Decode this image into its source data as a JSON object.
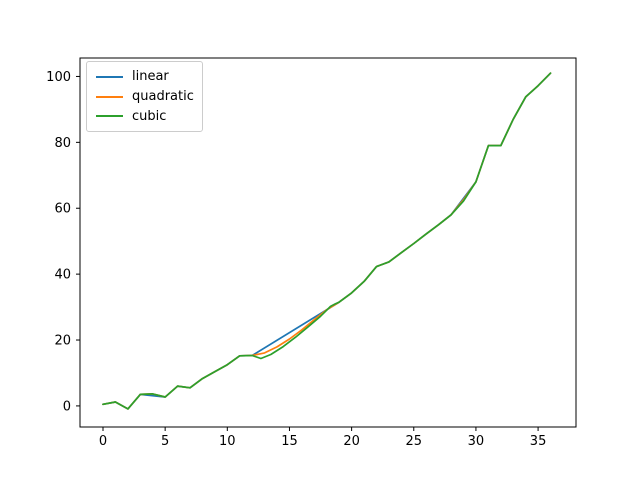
{
  "chart_data": {
    "type": "line",
    "title": "",
    "xlabel": "",
    "ylabel": "",
    "grid": false,
    "xlim": [
      -1.85,
      38.05
    ],
    "ylim": [
      -6.4,
      105.6
    ],
    "xticks": [
      0,
      5,
      10,
      15,
      20,
      25,
      30,
      35
    ],
    "yticks": [
      0,
      20,
      40,
      60,
      80,
      100
    ],
    "legend": {
      "position": "upper-left",
      "entries": [
        {
          "label": "linear",
          "color": "#1f77b4"
        },
        {
          "label": "quadratic",
          "color": "#ff7f0e"
        },
        {
          "label": "cubic",
          "color": "#2ca02c"
        }
      ]
    },
    "series": [
      {
        "name": "linear",
        "color": "#1f77b4",
        "points": [
          [
            0,
            0.5
          ],
          [
            1,
            1.2
          ],
          [
            2,
            -0.9
          ],
          [
            3,
            3.5
          ],
          [
            5,
            2.7
          ],
          [
            6,
            6.0
          ],
          [
            7,
            5.5
          ],
          [
            8,
            8.3
          ],
          [
            9,
            10.4
          ],
          [
            10,
            12.5
          ],
          [
            11,
            15.2
          ],
          [
            12,
            15.3
          ],
          [
            19,
            31.5
          ],
          [
            20,
            34.3
          ],
          [
            21,
            37.8
          ],
          [
            22,
            42.3
          ],
          [
            23,
            43.7
          ],
          [
            24,
            46.5
          ],
          [
            25,
            49.3
          ],
          [
            26,
            52.2
          ],
          [
            27,
            55.0
          ],
          [
            28,
            58.0
          ],
          [
            30,
            68.0
          ],
          [
            31,
            79.0
          ],
          [
            32,
            79.0
          ],
          [
            33,
            87.0
          ],
          [
            34,
            93.8
          ],
          [
            35,
            97.2
          ],
          [
            36,
            101.0
          ]
        ]
      },
      {
        "name": "quadratic",
        "color": "#ff7f0e",
        "points": [
          [
            0,
            0.5
          ],
          [
            1,
            1.2
          ],
          [
            2,
            -0.9
          ],
          [
            3,
            3.5
          ],
          [
            4,
            3.65
          ],
          [
            5,
            2.7
          ],
          [
            6,
            6.0
          ],
          [
            7,
            5.5
          ],
          [
            8,
            8.3
          ],
          [
            9,
            10.4
          ],
          [
            10,
            12.5
          ],
          [
            11,
            15.2
          ],
          [
            12,
            15.3
          ],
          [
            13,
            16.1
          ],
          [
            14,
            17.9
          ],
          [
            15,
            20.3
          ],
          [
            16,
            23.1
          ],
          [
            17,
            26.2
          ],
          [
            18,
            29.2
          ],
          [
            19,
            31.5
          ],
          [
            20,
            34.3
          ],
          [
            21,
            37.8
          ],
          [
            22,
            42.3
          ],
          [
            23,
            43.7
          ],
          [
            24,
            46.5
          ],
          [
            25,
            49.3
          ],
          [
            26,
            52.2
          ],
          [
            27,
            55.0
          ],
          [
            28,
            58.0
          ],
          [
            29,
            62.6
          ],
          [
            30,
            68.0
          ],
          [
            31,
            79.0
          ],
          [
            32,
            79.0
          ],
          [
            33,
            87.0
          ],
          [
            34,
            93.8
          ],
          [
            35,
            97.2
          ],
          [
            36,
            101.0
          ]
        ]
      },
      {
        "name": "cubic",
        "color": "#2ca02c",
        "points": [
          [
            0,
            0.5
          ],
          [
            1,
            1.2
          ],
          [
            2,
            -0.9
          ],
          [
            3,
            3.5
          ],
          [
            4,
            3.65
          ],
          [
            5,
            2.7
          ],
          [
            6,
            6.0
          ],
          [
            7,
            5.5
          ],
          [
            8,
            8.3
          ],
          [
            9,
            10.4
          ],
          [
            10,
            12.5
          ],
          [
            11,
            15.2
          ],
          [
            12,
            15.3
          ],
          [
            12.7,
            14.4
          ],
          [
            13.5,
            15.6
          ],
          [
            14.5,
            18.0
          ],
          [
            15.5,
            20.9
          ],
          [
            16.5,
            24.0
          ],
          [
            17.5,
            27.2
          ],
          [
            18.3,
            30.2
          ],
          [
            18.7,
            31.0
          ],
          [
            19,
            31.5
          ],
          [
            20,
            34.3
          ],
          [
            21,
            37.8
          ],
          [
            22,
            42.3
          ],
          [
            23,
            43.7
          ],
          [
            24,
            46.5
          ],
          [
            25,
            49.3
          ],
          [
            26,
            52.2
          ],
          [
            27,
            55.0
          ],
          [
            28,
            58.0
          ],
          [
            29,
            62.2
          ],
          [
            30,
            68.0
          ],
          [
            31,
            79.0
          ],
          [
            32,
            79.0
          ],
          [
            33,
            87.0
          ],
          [
            34,
            93.8
          ],
          [
            35,
            97.2
          ],
          [
            36,
            101.0
          ]
        ]
      }
    ]
  }
}
